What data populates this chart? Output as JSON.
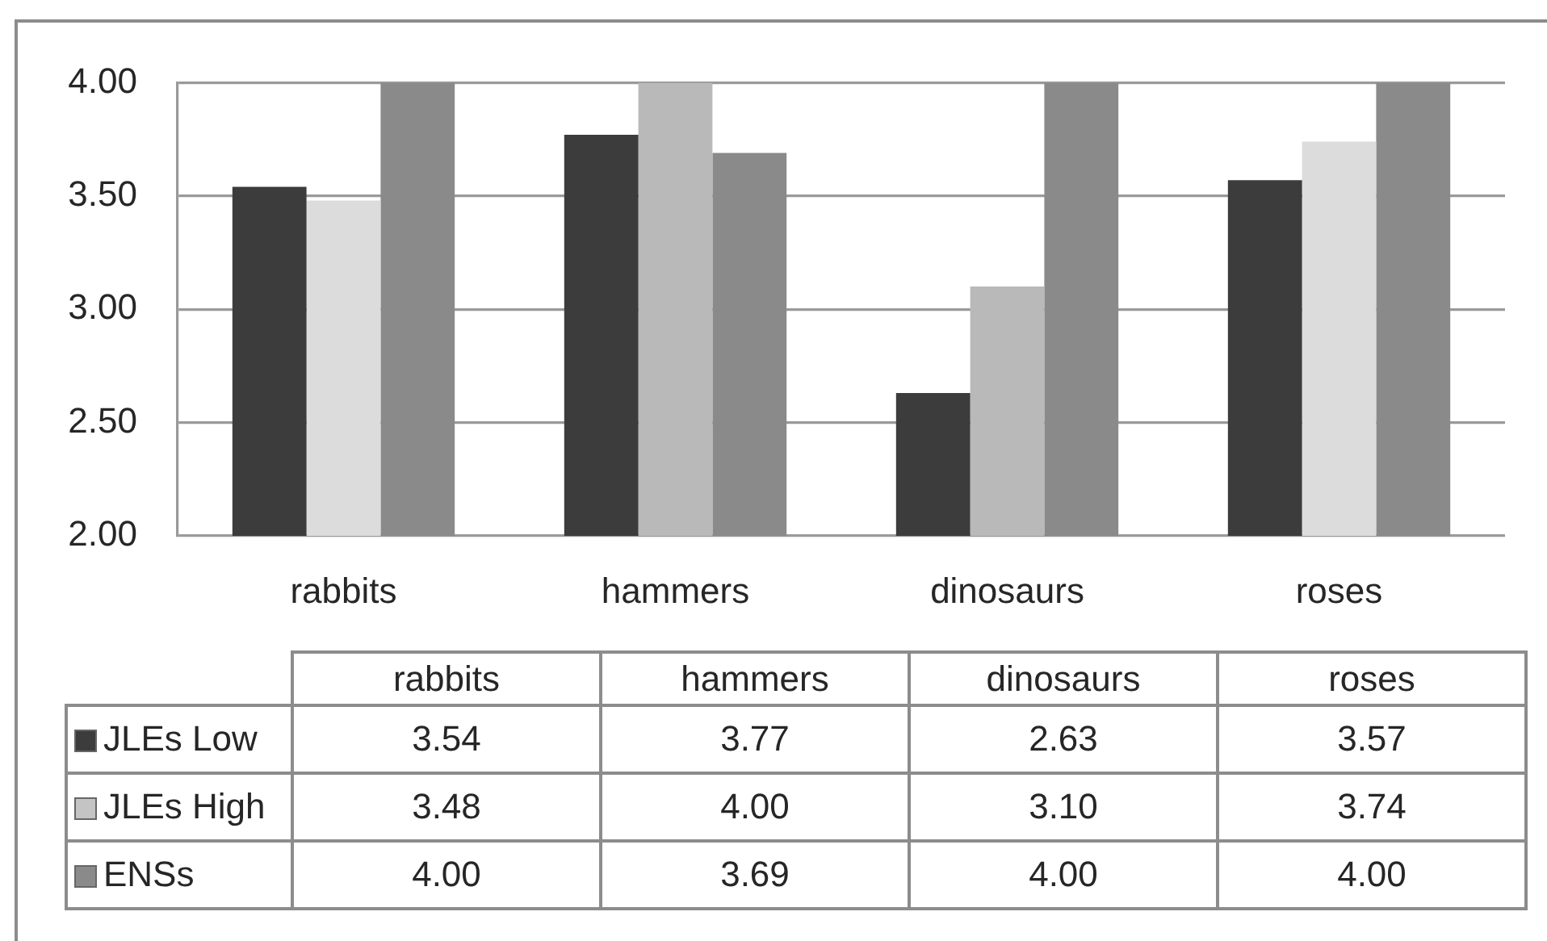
{
  "chart_data": {
    "type": "bar",
    "categories": [
      "rabbits",
      "hammers",
      "dinosaurs",
      "roses"
    ],
    "series": [
      {
        "name": "JLEs Low",
        "color": "#3c3c3c",
        "values": [
          3.54,
          3.77,
          2.63,
          3.57
        ],
        "value_labels": [
          "3.54",
          "3.77",
          "2.63",
          "3.57"
        ]
      },
      {
        "name": "JLEs High",
        "color": "#c4c4c4",
        "colors": [
          "#dcdcdc",
          "#b9b9b9",
          "#b9b9b9",
          "#dcdcdc"
        ],
        "values": [
          3.48,
          4.0,
          3.1,
          3.74
        ],
        "value_labels": [
          "3.48",
          "4.00",
          "3.10",
          "3.74"
        ]
      },
      {
        "name": "ENSs",
        "color": "#8a8a8a",
        "values": [
          4.0,
          3.69,
          4.0,
          4.0
        ],
        "value_labels": [
          "4.00",
          "3.69",
          "4.00",
          "4.00"
        ]
      }
    ],
    "ylim": [
      2,
      4
    ],
    "yticks": [
      {
        "value": 2,
        "label": "2.00"
      },
      {
        "value": 2.5,
        "label": "2.50"
      },
      {
        "value": 3,
        "label": "3.00"
      },
      {
        "value": 3.5,
        "label": "3.50"
      },
      {
        "value": 4,
        "label": "4.00"
      }
    ],
    "grid": "y",
    "legend": "bottom"
  }
}
